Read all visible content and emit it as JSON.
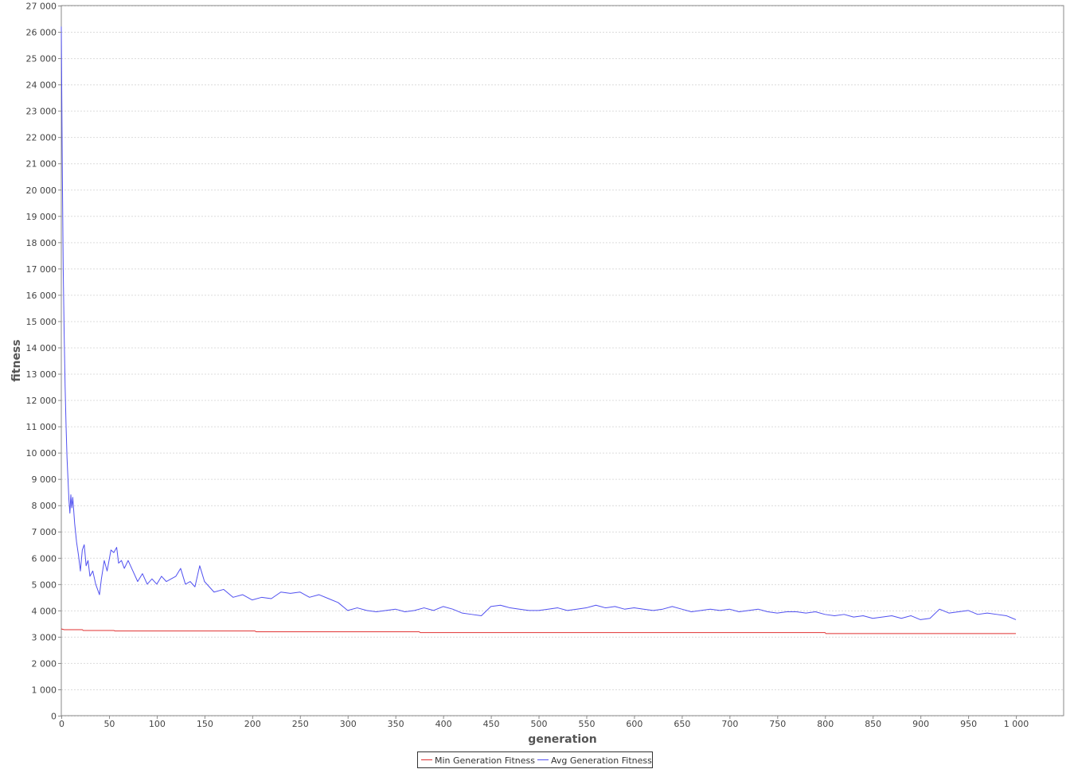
{
  "chart_data": {
    "type": "line",
    "xlabel": "generation",
    "ylabel": "fitness",
    "xlim": [
      0,
      1050
    ],
    "ylim": [
      0,
      27000
    ],
    "x_ticks": [
      0,
      50,
      100,
      150,
      200,
      250,
      300,
      350,
      400,
      450,
      500,
      550,
      600,
      650,
      700,
      750,
      800,
      850,
      900,
      950,
      1000
    ],
    "x_tick_labels": [
      "0",
      "50",
      "100",
      "150",
      "200",
      "250",
      "300",
      "350",
      "400",
      "450",
      "500",
      "550",
      "600",
      "650",
      "700",
      "750",
      "800",
      "850",
      "900",
      "950",
      "1 000"
    ],
    "y_ticks": [
      0,
      1000,
      2000,
      3000,
      4000,
      5000,
      6000,
      7000,
      8000,
      9000,
      10000,
      11000,
      12000,
      13000,
      14000,
      15000,
      16000,
      17000,
      18000,
      19000,
      20000,
      21000,
      22000,
      23000,
      24000,
      25000,
      26000,
      27000
    ],
    "y_tick_labels": [
      "0",
      "1 000",
      "2 000",
      "3 000",
      "4 000",
      "5 000",
      "6 000",
      "7 000",
      "8 000",
      "9 000",
      "10 000",
      "11 000",
      "12 000",
      "13 000",
      "14 000",
      "15 000",
      "16 000",
      "17 000",
      "18 000",
      "19 000",
      "20 000",
      "21 000",
      "22 000",
      "23 000",
      "24 000",
      "25 000",
      "26 000",
      "27 000"
    ],
    "grid": true,
    "legend_position": "bottom-center",
    "series": [
      {
        "name": "Min Generation Fitness",
        "color": "#e03030",
        "x": [
          0,
          3,
          22,
          23,
          55,
          56,
          203,
          204,
          375,
          376,
          800,
          801,
          1000
        ],
        "y": [
          3300,
          3270,
          3270,
          3240,
          3240,
          3220,
          3220,
          3190,
          3190,
          3160,
          3160,
          3120,
          3120
        ]
      },
      {
        "name": "Avg Generation Fitness",
        "color": "#5050f0",
        "x": [
          0,
          1,
          2,
          3,
          4,
          5,
          6,
          7,
          8,
          9,
          10,
          11,
          12,
          14,
          16,
          18,
          20,
          22,
          24,
          26,
          28,
          30,
          33,
          36,
          40,
          42,
          45,
          48,
          52,
          55,
          58,
          60,
          63,
          66,
          70,
          75,
          80,
          85,
          90,
          95,
          100,
          105,
          110,
          115,
          120,
          125,
          130,
          135,
          140,
          145,
          150,
          155,
          160,
          170,
          180,
          190,
          200,
          210,
          220,
          230,
          240,
          250,
          260,
          270,
          280,
          290,
          300,
          310,
          320,
          330,
          340,
          350,
          360,
          370,
          380,
          390,
          400,
          410,
          420,
          430,
          440,
          450,
          460,
          470,
          480,
          490,
          500,
          510,
          520,
          530,
          540,
          550,
          560,
          570,
          580,
          590,
          600,
          610,
          620,
          630,
          640,
          650,
          660,
          670,
          680,
          690,
          700,
          710,
          720,
          730,
          740,
          750,
          760,
          770,
          780,
          790,
          800,
          810,
          820,
          830,
          840,
          850,
          860,
          870,
          880,
          890,
          900,
          910,
          920,
          930,
          940,
          950,
          960,
          970,
          980,
          990,
          1000
        ],
        "y": [
          26200,
          21000,
          17000,
          14500,
          12500,
          11000,
          9800,
          9000,
          8200,
          7700,
          8400,
          7900,
          8300,
          7300,
          6600,
          6100,
          5500,
          6300,
          6500,
          5700,
          5900,
          5300,
          5500,
          5000,
          4600,
          5200,
          5900,
          5500,
          6300,
          6200,
          6400,
          5800,
          5900,
          5600,
          5900,
          5500,
          5100,
          5400,
          5000,
          5200,
          5000,
          5300,
          5100,
          5200,
          5300,
          5600,
          5000,
          5100,
          4900,
          5700,
          5100,
          4900,
          4700,
          4800,
          4500,
          4600,
          4400,
          4500,
          4450,
          4700,
          4650,
          4700,
          4500,
          4600,
          4450,
          4300,
          4000,
          4100,
          4000,
          3950,
          4000,
          4050,
          3950,
          4000,
          4100,
          4000,
          4150,
          4050,
          3900,
          3850,
          3800,
          4150,
          4200,
          4100,
          4050,
          4000,
          4000,
          4050,
          4100,
          4000,
          4050,
          4100,
          4200,
          4100,
          4150,
          4050,
          4100,
          4050,
          4000,
          4050,
          4150,
          4050,
          3950,
          4000,
          4050,
          4000,
          4050,
          3950,
          4000,
          4050,
          3950,
          3900,
          3950,
          3950,
          3900,
          3950,
          3850,
          3800,
          3850,
          3750,
          3800,
          3700,
          3750,
          3800,
          3700,
          3800,
          3650,
          3700,
          4050,
          3900,
          3950,
          4000,
          3850,
          3900,
          3850,
          3800,
          3650
        ]
      }
    ]
  }
}
